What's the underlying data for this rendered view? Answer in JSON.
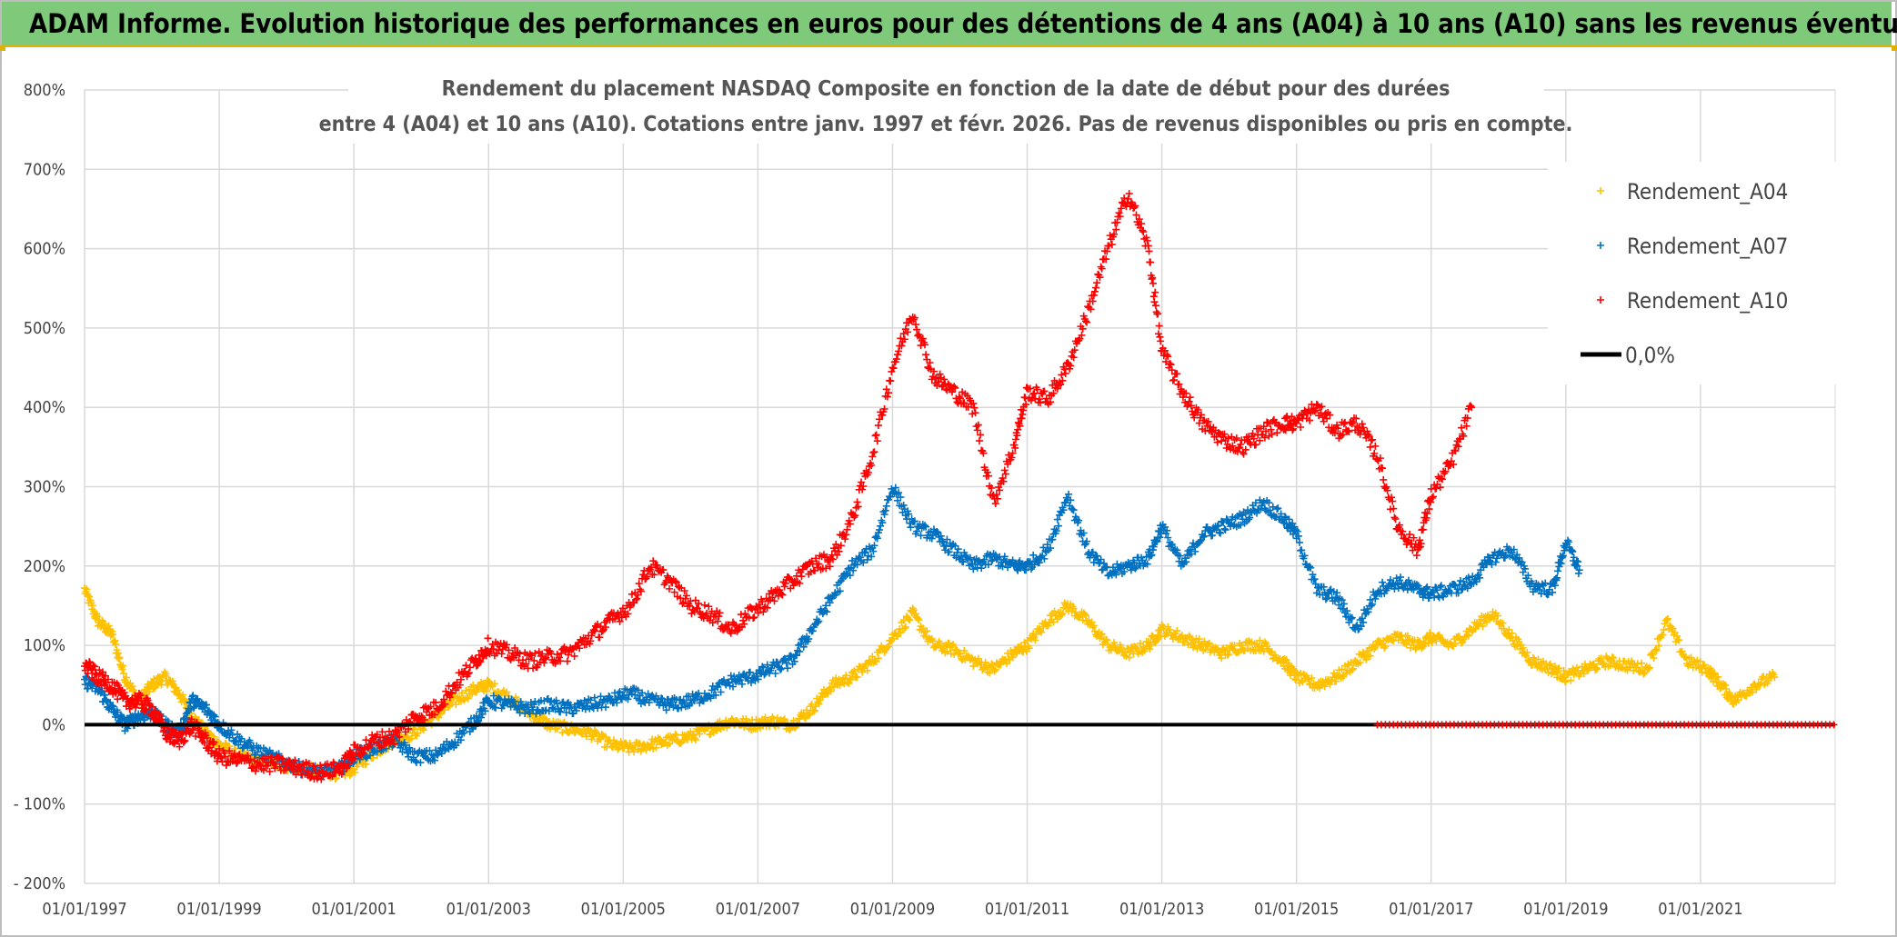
{
  "header": {
    "title": "ADAM Informe. Evolution historique des performances en euros pour des détentions de 4 ans (A04) à 10 ans (A10) sans les revenus éventuels"
  },
  "colors": {
    "header_bg": "#7ec97a",
    "header_accent": "#e0b100",
    "a04": "#ffc000",
    "a07": "#0070c0",
    "a10": "#ff0000",
    "zero": "#000000"
  },
  "chart_data": {
    "type": "scatter",
    "title_lines": [
      "Rendement du placement NASDAQ Composite en fonction de la date de début pour des durées",
      "entre 4 (A04) et 10 ans (A10). Cotations entre janv. 1997 et févr. 2026. Pas de revenus disponibles ou pris en compte."
    ],
    "xlim": [
      1997.0,
      2023.0
    ],
    "x_ticks": [
      1997,
      1999,
      2001,
      2003,
      2005,
      2007,
      2009,
      2011,
      2013,
      2015,
      2017,
      2019,
      2021
    ],
    "x_tick_labels": [
      "01/01/1997",
      "01/01/1999",
      "01/01/2001",
      "01/01/2003",
      "01/01/2005",
      "01/01/2007",
      "01/01/2009",
      "01/01/2011",
      "01/01/2013",
      "01/01/2015",
      "01/01/2017",
      "01/01/2019",
      "01/01/2021"
    ],
    "ylim": [
      -200,
      800
    ],
    "y_ticks": [
      -200,
      -100,
      0,
      100,
      200,
      300,
      400,
      500,
      600,
      700,
      800
    ],
    "y_tick_labels": [
      "- 200%",
      "- 100%",
      "0%",
      "100%",
      "200%",
      "300%",
      "400%",
      "500%",
      "600%",
      "700%",
      "800%"
    ],
    "legend_position": "top-right",
    "grid": true,
    "series": [
      {
        "name": "Rendement_A04",
        "color": "#ffc000",
        "marker": "plus",
        "points": [
          [
            1997.0,
            170
          ],
          [
            1997.2,
            130
          ],
          [
            1997.4,
            115
          ],
          [
            1997.6,
            60
          ],
          [
            1997.8,
            30
          ],
          [
            1998.0,
            50
          ],
          [
            1998.2,
            60
          ],
          [
            1998.4,
            40
          ],
          [
            1998.6,
            10
          ],
          [
            1998.8,
            -10
          ],
          [
            1999.0,
            -25
          ],
          [
            1999.3,
            -40
          ],
          [
            1999.6,
            -45
          ],
          [
            1999.9,
            -50
          ],
          [
            2000.2,
            -55
          ],
          [
            2000.5,
            -60
          ],
          [
            2000.8,
            -62
          ],
          [
            2001.0,
            -55
          ],
          [
            2001.3,
            -35
          ],
          [
            2001.6,
            -20
          ],
          [
            2001.9,
            -10
          ],
          [
            2002.2,
            10
          ],
          [
            2002.5,
            30
          ],
          [
            2002.8,
            45
          ],
          [
            2003.0,
            50
          ],
          [
            2003.3,
            35
          ],
          [
            2003.6,
            15
          ],
          [
            2003.9,
            0
          ],
          [
            2004.2,
            -5
          ],
          [
            2004.5,
            -10
          ],
          [
            2004.8,
            -25
          ],
          [
            2005.1,
            -30
          ],
          [
            2005.4,
            -25
          ],
          [
            2005.7,
            -20
          ],
          [
            2006.0,
            -15
          ],
          [
            2006.3,
            -5
          ],
          [
            2006.6,
            5
          ],
          [
            2006.9,
            0
          ],
          [
            2007.2,
            5
          ],
          [
            2007.5,
            0
          ],
          [
            2007.8,
            20
          ],
          [
            2008.1,
            50
          ],
          [
            2008.4,
            60
          ],
          [
            2008.7,
            80
          ],
          [
            2009.0,
            110
          ],
          [
            2009.3,
            140
          ],
          [
            2009.6,
            100
          ],
          [
            2009.9,
            95
          ],
          [
            2010.2,
            80
          ],
          [
            2010.5,
            70
          ],
          [
            2010.8,
            90
          ],
          [
            2011.0,
            100
          ],
          [
            2011.3,
            130
          ],
          [
            2011.6,
            150
          ],
          [
            2011.9,
            130
          ],
          [
            2012.2,
            100
          ],
          [
            2012.5,
            90
          ],
          [
            2012.8,
            100
          ],
          [
            2013.0,
            120
          ],
          [
            2013.3,
            110
          ],
          [
            2013.6,
            100
          ],
          [
            2013.9,
            90
          ],
          [
            2014.2,
            100
          ],
          [
            2014.5,
            100
          ],
          [
            2014.8,
            80
          ],
          [
            2015.0,
            60
          ],
          [
            2015.3,
            50
          ],
          [
            2015.6,
            60
          ],
          [
            2015.9,
            80
          ],
          [
            2016.2,
            100
          ],
          [
            2016.5,
            110
          ],
          [
            2016.8,
            100
          ],
          [
            2017.0,
            110
          ],
          [
            2017.3,
            100
          ],
          [
            2017.6,
            120
          ],
          [
            2017.9,
            140
          ],
          [
            2018.2,
            110
          ],
          [
            2018.5,
            80
          ],
          [
            2018.8,
            70
          ],
          [
            2019.0,
            60
          ],
          [
            2019.3,
            70
          ],
          [
            2019.6,
            80
          ],
          [
            2019.9,
            75
          ],
          [
            2020.2,
            70
          ],
          [
            2020.5,
            130
          ],
          [
            2020.8,
            80
          ],
          [
            2021.1,
            70
          ],
          [
            2021.3,
            50
          ],
          [
            2021.5,
            30
          ],
          [
            2021.8,
            50
          ],
          [
            2022.1,
            60
          ]
        ]
      },
      {
        "name": "Rendement_A07",
        "color": "#0070c0",
        "marker": "plus",
        "points": [
          [
            1997.0,
            55
          ],
          [
            1997.2,
            45
          ],
          [
            1997.4,
            20
          ],
          [
            1997.6,
            0
          ],
          [
            1997.8,
            10
          ],
          [
            1998.0,
            15
          ],
          [
            1998.2,
            0
          ],
          [
            1998.4,
            -10
          ],
          [
            1998.6,
            30
          ],
          [
            1998.8,
            20
          ],
          [
            1999.0,
            0
          ],
          [
            1999.3,
            -20
          ],
          [
            1999.6,
            -35
          ],
          [
            1999.9,
            -45
          ],
          [
            2000.2,
            -55
          ],
          [
            2000.5,
            -60
          ],
          [
            2000.8,
            -55
          ],
          [
            2001.0,
            -40
          ],
          [
            2001.3,
            -30
          ],
          [
            2001.6,
            -20
          ],
          [
            2001.9,
            -40
          ],
          [
            2002.2,
            -40
          ],
          [
            2002.5,
            -20
          ],
          [
            2002.8,
            5
          ],
          [
            2003.0,
            30
          ],
          [
            2003.3,
            25
          ],
          [
            2003.6,
            20
          ],
          [
            2003.9,
            25
          ],
          [
            2004.2,
            20
          ],
          [
            2004.5,
            25
          ],
          [
            2004.8,
            30
          ],
          [
            2005.1,
            40
          ],
          [
            2005.4,
            30
          ],
          [
            2005.7,
            25
          ],
          [
            2006.0,
            30
          ],
          [
            2006.3,
            40
          ],
          [
            2006.6,
            55
          ],
          [
            2006.9,
            60
          ],
          [
            2007.2,
            70
          ],
          [
            2007.5,
            80
          ],
          [
            2007.8,
            120
          ],
          [
            2008.1,
            160
          ],
          [
            2008.4,
            200
          ],
          [
            2008.7,
            220
          ],
          [
            2009.0,
            300
          ],
          [
            2009.3,
            250
          ],
          [
            2009.6,
            240
          ],
          [
            2009.9,
            220
          ],
          [
            2010.2,
            200
          ],
          [
            2010.5,
            210
          ],
          [
            2010.8,
            200
          ],
          [
            2011.0,
            200
          ],
          [
            2011.3,
            220
          ],
          [
            2011.6,
            290
          ],
          [
            2011.9,
            220
          ],
          [
            2012.2,
            190
          ],
          [
            2012.5,
            200
          ],
          [
            2012.8,
            210
          ],
          [
            2013.0,
            250
          ],
          [
            2013.3,
            200
          ],
          [
            2013.6,
            240
          ],
          [
            2013.9,
            250
          ],
          [
            2014.2,
            260
          ],
          [
            2014.5,
            280
          ],
          [
            2014.8,
            260
          ],
          [
            2015.0,
            240
          ],
          [
            2015.3,
            170
          ],
          [
            2015.6,
            160
          ],
          [
            2015.9,
            120
          ],
          [
            2016.2,
            170
          ],
          [
            2016.5,
            180
          ],
          [
            2016.8,
            170
          ],
          [
            2017.0,
            165
          ],
          [
            2017.3,
            170
          ],
          [
            2017.6,
            180
          ],
          [
            2017.9,
            210
          ],
          [
            2018.2,
            220
          ],
          [
            2018.5,
            175
          ],
          [
            2018.8,
            170
          ],
          [
            2019.0,
            230
          ],
          [
            2019.2,
            195
          ]
        ]
      },
      {
        "name": "Rendement_A10",
        "color": "#ff0000",
        "marker": "plus",
        "points": [
          [
            1997.0,
            75
          ],
          [
            1997.2,
            60
          ],
          [
            1997.4,
            50
          ],
          [
            1997.6,
            30
          ],
          [
            1997.8,
            30
          ],
          [
            1998.0,
            20
          ],
          [
            1998.2,
            -10
          ],
          [
            1998.4,
            -20
          ],
          [
            1998.6,
            0
          ],
          [
            1998.8,
            -20
          ],
          [
            1999.0,
            -40
          ],
          [
            1999.3,
            -45
          ],
          [
            1999.6,
            -50
          ],
          [
            1999.9,
            -50
          ],
          [
            2000.2,
            -55
          ],
          [
            2000.5,
            -60
          ],
          [
            2000.8,
            -55
          ],
          [
            2001.0,
            -35
          ],
          [
            2001.3,
            -20
          ],
          [
            2001.6,
            -15
          ],
          [
            2001.9,
            10
          ],
          [
            2002.2,
            20
          ],
          [
            2002.5,
            50
          ],
          [
            2002.8,
            80
          ],
          [
            2003.0,
            100
          ],
          [
            2003.3,
            90
          ],
          [
            2003.6,
            80
          ],
          [
            2003.9,
            85
          ],
          [
            2004.2,
            90
          ],
          [
            2004.5,
            110
          ],
          [
            2004.8,
            130
          ],
          [
            2005.1,
            150
          ],
          [
            2005.4,
            200
          ],
          [
            2005.7,
            180
          ],
          [
            2006.0,
            150
          ],
          [
            2006.3,
            140
          ],
          [
            2006.6,
            120
          ],
          [
            2006.9,
            140
          ],
          [
            2007.2,
            160
          ],
          [
            2007.5,
            180
          ],
          [
            2007.8,
            200
          ],
          [
            2008.1,
            210
          ],
          [
            2008.4,
            260
          ],
          [
            2008.7,
            340
          ],
          [
            2009.0,
            450
          ],
          [
            2009.3,
            520
          ],
          [
            2009.6,
            440
          ],
          [
            2009.9,
            420
          ],
          [
            2010.2,
            400
          ],
          [
            2010.5,
            280
          ],
          [
            2010.8,
            350
          ],
          [
            2011.0,
            420
          ],
          [
            2011.3,
            410
          ],
          [
            2011.6,
            450
          ],
          [
            2011.9,
            520
          ],
          [
            2012.2,
            600
          ],
          [
            2012.5,
            670
          ],
          [
            2012.8,
            600
          ],
          [
            2013.0,
            470
          ],
          [
            2013.3,
            420
          ],
          [
            2013.6,
            380
          ],
          [
            2013.9,
            360
          ],
          [
            2014.2,
            350
          ],
          [
            2014.5,
            370
          ],
          [
            2014.8,
            380
          ],
          [
            2015.0,
            380
          ],
          [
            2015.3,
            400
          ],
          [
            2015.6,
            370
          ],
          [
            2015.9,
            380
          ],
          [
            2016.2,
            340
          ],
          [
            2016.5,
            250
          ],
          [
            2016.8,
            220
          ],
          [
            2017.0,
            290
          ],
          [
            2017.3,
            330
          ],
          [
            2017.6,
            400
          ]
        ]
      }
    ],
    "reference_line": {
      "name": "0,0%",
      "y": 0,
      "color": "#000000"
    }
  }
}
